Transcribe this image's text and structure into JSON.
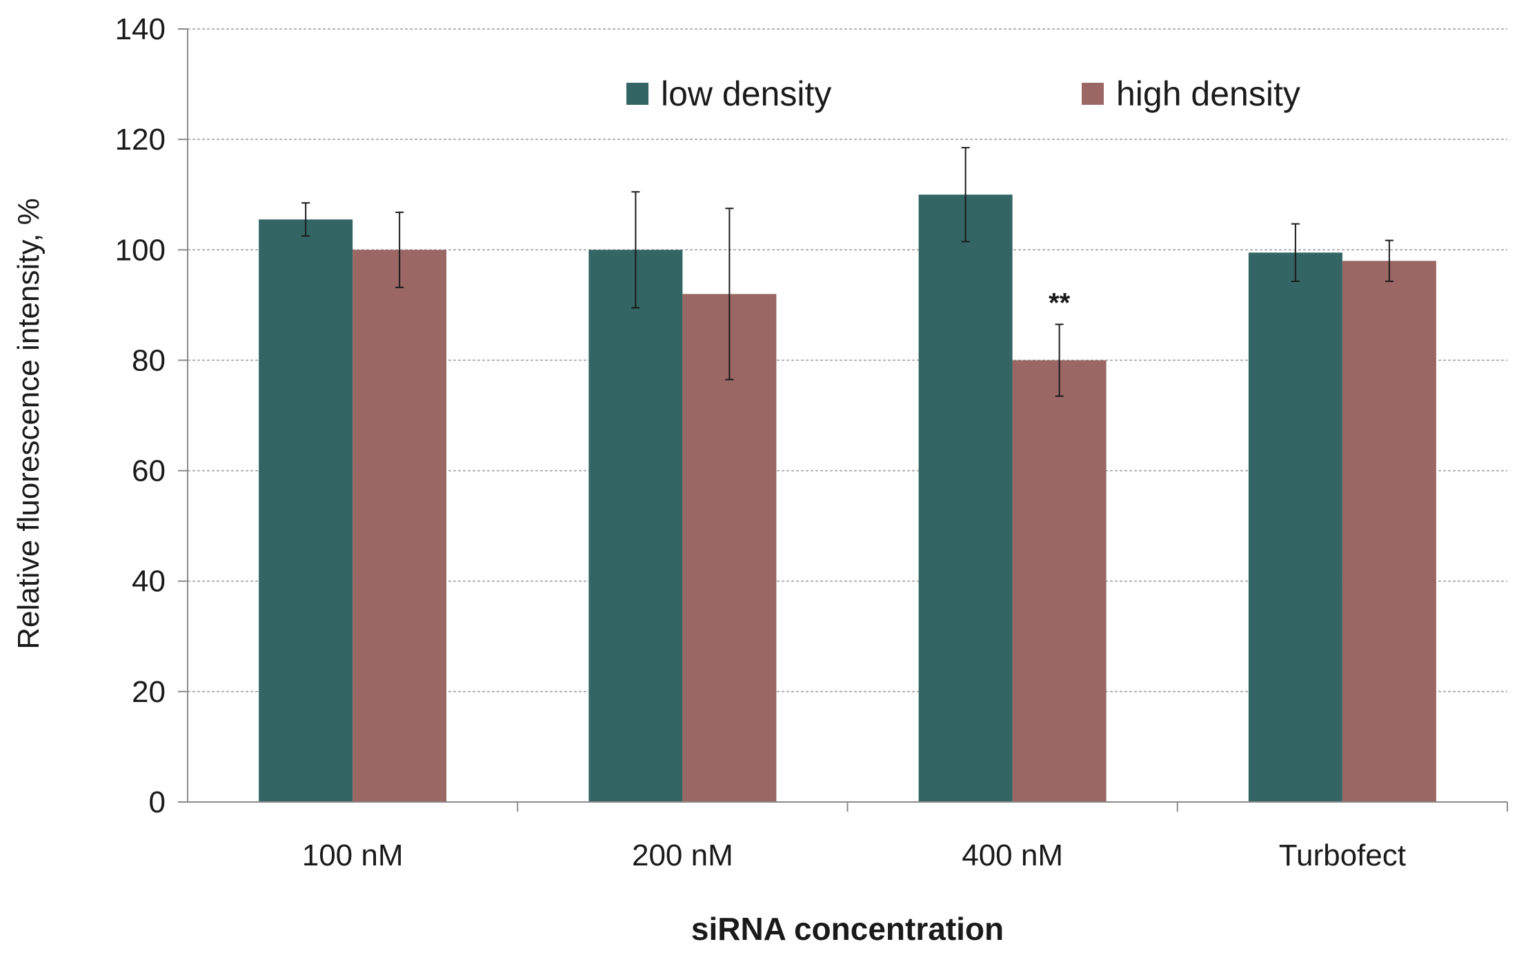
{
  "chart_data": {
    "type": "bar",
    "title": "",
    "xlabel": "siRNA concentration",
    "ylabel": "Relative fluorescence intensity, %",
    "ylim": [
      0,
      140
    ],
    "yticks": [
      0,
      20,
      40,
      60,
      80,
      100,
      120,
      140
    ],
    "ytick_labels": [
      "0",
      "20",
      "40",
      "60",
      "80",
      "100",
      "120",
      "140"
    ],
    "grid": true,
    "legend_position": "top",
    "categories": [
      "100 nM",
      "200 nM",
      "400 nM",
      "Turbofect"
    ],
    "series": [
      {
        "name": "low density",
        "color": "#336565",
        "values": [
          105.5,
          100,
          110,
          99.5
        ],
        "errors": [
          3,
          10.5,
          8.5,
          5.2
        ]
      },
      {
        "name": "high density",
        "color": "#9a6765",
        "values": [
          100,
          92,
          80,
          98
        ],
        "errors": [
          6.8,
          15.5,
          6.5,
          3.7
        ]
      }
    ],
    "annotations": [
      {
        "category": "400 nM",
        "series": "high density",
        "text": "**"
      }
    ]
  }
}
